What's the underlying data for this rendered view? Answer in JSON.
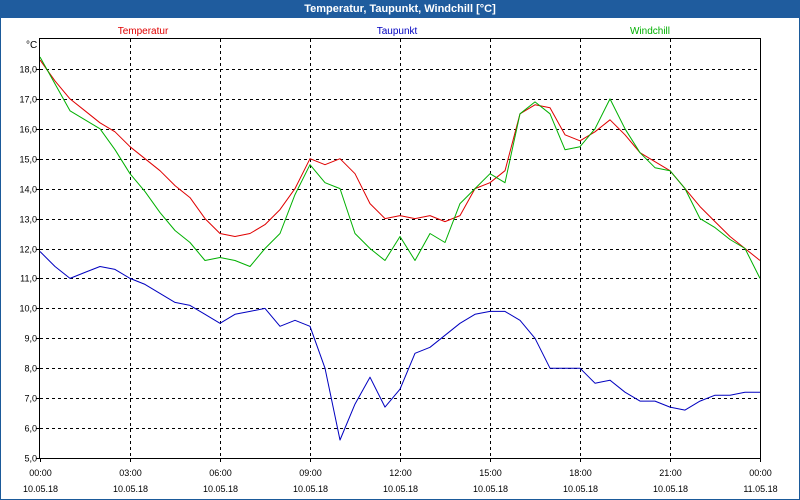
{
  "window": {
    "title": "Temperatur, Taupunkt, Windchill [°C]"
  },
  "chart_data": {
    "type": "line",
    "title": "Temperatur, Taupunkt, Windchill [°C]",
    "ylabel": "°C",
    "ylim": [
      5.0,
      19.0
    ],
    "xlim": [
      0,
      24
    ],
    "grid": true,
    "legend": "top",
    "y_ticks": [
      "5,0",
      "6,0",
      "7,0",
      "8,0",
      "9,0",
      "10,0",
      "11,0",
      "12,0",
      "13,0",
      "14,0",
      "15,0",
      "16,0",
      "17,0",
      "18,0"
    ],
    "x_ticks": [
      {
        "x": 0,
        "time": "00:00",
        "date": "10.05.18"
      },
      {
        "x": 3,
        "time": "03:00",
        "date": "10.05.18"
      },
      {
        "x": 6,
        "time": "06:00",
        "date": "10.05.18"
      },
      {
        "x": 9,
        "time": "09:00",
        "date": "10.05.18"
      },
      {
        "x": 12,
        "time": "12:00",
        "date": "10.05.18"
      },
      {
        "x": 15,
        "time": "15:00",
        "date": "10.05.18"
      },
      {
        "x": 18,
        "time": "18:00",
        "date": "10.05.18"
      },
      {
        "x": 21,
        "time": "21:00",
        "date": "10.05.18"
      },
      {
        "x": 24,
        "time": "00:00",
        "date": "11.05.18"
      }
    ],
    "series": [
      {
        "name": "Temperatur",
        "color": "#e00000",
        "points": [
          [
            0,
            18.3
          ],
          [
            0.5,
            17.6
          ],
          [
            1,
            17.0
          ],
          [
            1.5,
            16.6
          ],
          [
            2,
            16.2
          ],
          [
            2.5,
            15.9
          ],
          [
            3,
            15.4
          ],
          [
            3.5,
            15.0
          ],
          [
            4,
            14.6
          ],
          [
            4.5,
            14.1
          ],
          [
            5,
            13.7
          ],
          [
            5.5,
            13.0
          ],
          [
            6,
            12.5
          ],
          [
            6.5,
            12.4
          ],
          [
            7,
            12.5
          ],
          [
            7.5,
            12.8
          ],
          [
            8,
            13.3
          ],
          [
            8.5,
            14.0
          ],
          [
            9,
            15.0
          ],
          [
            9.5,
            14.8
          ],
          [
            10,
            15.0
          ],
          [
            10.5,
            14.5
          ],
          [
            11,
            13.5
          ],
          [
            11.5,
            13.0
          ],
          [
            12,
            13.1
          ],
          [
            12.5,
            13.0
          ],
          [
            13,
            13.1
          ],
          [
            13.5,
            12.9
          ],
          [
            14,
            13.1
          ],
          [
            14.5,
            14.0
          ],
          [
            15,
            14.2
          ],
          [
            15.5,
            14.6
          ],
          [
            16,
            16.5
          ],
          [
            16.5,
            16.8
          ],
          [
            17,
            16.7
          ],
          [
            17.5,
            15.8
          ],
          [
            18,
            15.6
          ],
          [
            18.5,
            15.9
          ],
          [
            19,
            16.3
          ],
          [
            19.5,
            15.8
          ],
          [
            20,
            15.2
          ],
          [
            20.5,
            14.9
          ],
          [
            21,
            14.6
          ],
          [
            21.5,
            14.0
          ],
          [
            22,
            13.4
          ],
          [
            22.5,
            12.9
          ],
          [
            23,
            12.4
          ],
          [
            23.5,
            12.0
          ],
          [
            24,
            11.6
          ]
        ]
      },
      {
        "name": "Taupunkt",
        "color": "#0000c0",
        "points": [
          [
            0,
            11.9
          ],
          [
            0.5,
            11.4
          ],
          [
            1,
            11.0
          ],
          [
            1.5,
            11.2
          ],
          [
            2,
            11.4
          ],
          [
            2.5,
            11.3
          ],
          [
            3,
            11.0
          ],
          [
            3.5,
            10.8
          ],
          [
            4,
            10.5
          ],
          [
            4.5,
            10.2
          ],
          [
            5,
            10.1
          ],
          [
            5.5,
            9.8
          ],
          [
            6,
            9.5
          ],
          [
            6.5,
            9.8
          ],
          [
            7,
            9.9
          ],
          [
            7.5,
            10.0
          ],
          [
            8,
            9.4
          ],
          [
            8.5,
            9.6
          ],
          [
            9,
            9.4
          ],
          [
            9.5,
            8.0
          ],
          [
            10,
            5.6
          ],
          [
            10.5,
            6.8
          ],
          [
            11,
            7.7
          ],
          [
            11.5,
            6.7
          ],
          [
            12,
            7.3
          ],
          [
            12.5,
            8.5
          ],
          [
            13,
            8.7
          ],
          [
            13.5,
            9.1
          ],
          [
            14,
            9.5
          ],
          [
            14.5,
            9.8
          ],
          [
            15,
            9.9
          ],
          [
            15.5,
            9.9
          ],
          [
            16,
            9.6
          ],
          [
            16.5,
            9.0
          ],
          [
            17,
            8.0
          ],
          [
            17.5,
            8.0
          ],
          [
            18,
            8.0
          ],
          [
            18.5,
            7.5
          ],
          [
            19,
            7.6
          ],
          [
            19.5,
            7.2
          ],
          [
            20,
            6.9
          ],
          [
            20.5,
            6.9
          ],
          [
            21,
            6.7
          ],
          [
            21.5,
            6.6
          ],
          [
            22,
            6.9
          ],
          [
            22.5,
            7.1
          ],
          [
            23,
            7.1
          ],
          [
            23.5,
            7.2
          ],
          [
            24,
            7.2
          ]
        ]
      },
      {
        "name": "Windchill",
        "color": "#00b000",
        "points": [
          [
            0,
            18.4
          ],
          [
            0.5,
            17.5
          ],
          [
            1,
            16.6
          ],
          [
            1.5,
            16.3
          ],
          [
            2,
            16.0
          ],
          [
            2.5,
            15.3
          ],
          [
            3,
            14.5
          ],
          [
            3.5,
            13.9
          ],
          [
            4,
            13.2
          ],
          [
            4.5,
            12.6
          ],
          [
            5,
            12.2
          ],
          [
            5.5,
            11.6
          ],
          [
            6,
            11.7
          ],
          [
            6.5,
            11.6
          ],
          [
            7,
            11.4
          ],
          [
            7.5,
            12.0
          ],
          [
            8,
            12.5
          ],
          [
            8.5,
            13.8
          ],
          [
            9,
            14.8
          ],
          [
            9.5,
            14.2
          ],
          [
            10,
            14.0
          ],
          [
            10.5,
            12.5
          ],
          [
            11,
            12.0
          ],
          [
            11.5,
            11.6
          ],
          [
            12,
            12.4
          ],
          [
            12.5,
            11.6
          ],
          [
            13,
            12.5
          ],
          [
            13.5,
            12.2
          ],
          [
            14,
            13.5
          ],
          [
            14.5,
            14.0
          ],
          [
            15,
            14.5
          ],
          [
            15.5,
            14.2
          ],
          [
            16,
            16.5
          ],
          [
            16.5,
            16.9
          ],
          [
            17,
            16.5
          ],
          [
            17.5,
            15.3
          ],
          [
            18,
            15.4
          ],
          [
            18.5,
            16.0
          ],
          [
            19,
            17.0
          ],
          [
            19.5,
            16.0
          ],
          [
            20,
            15.2
          ],
          [
            20.5,
            14.7
          ],
          [
            21,
            14.6
          ],
          [
            21.5,
            14.0
          ],
          [
            22,
            13.0
          ],
          [
            22.5,
            12.7
          ],
          [
            23,
            12.3
          ],
          [
            23.5,
            12.0
          ],
          [
            24,
            11.0
          ]
        ]
      }
    ]
  }
}
